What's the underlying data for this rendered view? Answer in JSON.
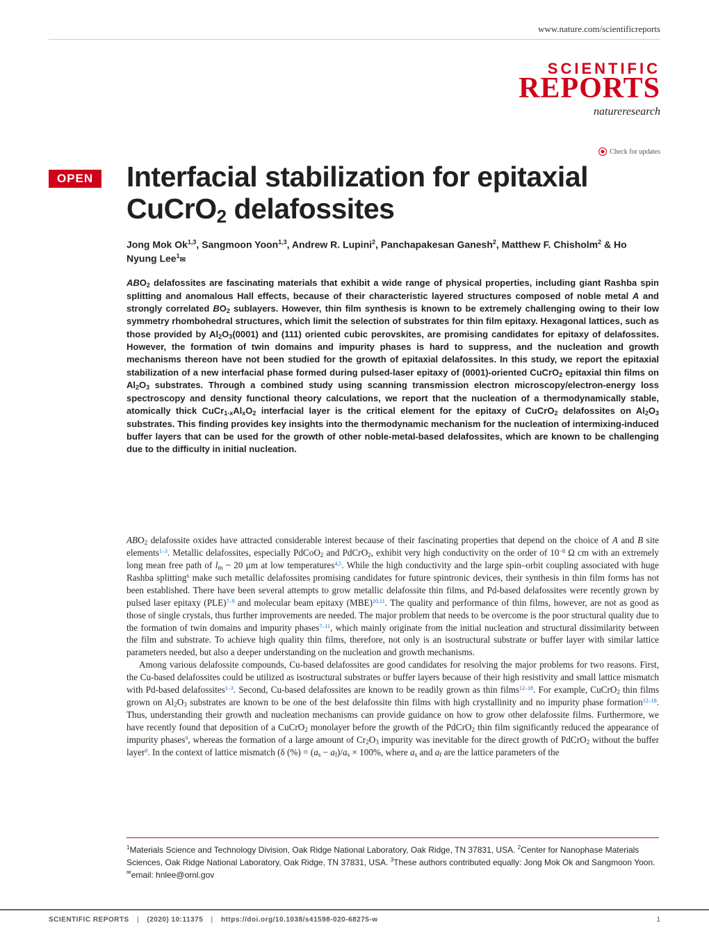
{
  "header": {
    "url": "www.nature.com/scientificreports"
  },
  "logo": {
    "scientific": "SCIENTIFIC",
    "reports": "REPORTS",
    "nature": "natureresearch"
  },
  "check_updates": {
    "label": "Check for updates"
  },
  "open_badge": "OPEN",
  "title": {
    "html": "Interfacial stabilization for epitaxial CuCrO<sub>2</sub> delafossites"
  },
  "authors": {
    "html": "Jong Mok Ok<sup>1,3</sup>, Sangmoon Yoon<sup>1,3</sup>, Andrew R. Lupini<sup>2</sup>, Panchapakesan Ganesh<sup>2</sup>, Matthew F. Chisholm<sup>2</sup> & Ho Nyung Lee<sup>1</sup><span class=\"envelope\">✉</span>"
  },
  "abstract": {
    "html": "<i>AB</i>O<sub>2</sub> delafossites are fascinating materials that exhibit a wide range of physical properties, including giant Rashba spin splitting and anomalous Hall effects, because of their characteristic layered structures composed of noble metal <i>A</i> and strongly correlated <i>B</i>O<sub>2</sub> sublayers. However, thin film synthesis is known to be extremely challenging owing to their low symmetry rhombohedral structures, which limit the selection of substrates for thin film epitaxy. Hexagonal lattices, such as those provided by Al<sub>2</sub>O<sub>3</sub>(0001) and (111) oriented cubic perovskites, are promising candidates for epitaxy of delafossites. However, the formation of twin domains and impurity phases is hard to suppress, and the nucleation and growth mechanisms thereon have not been studied for the growth of epitaxial delafossites. In this study, we report the epitaxial stabilization of a new interfacial phase formed during pulsed-laser epitaxy of (0001)-oriented CuCrO<sub>2</sub> epitaxial thin films on Al<sub>2</sub>O<sub>3</sub> substrates. Through a combined study using scanning transmission electron microscopy/electron-energy loss spectroscopy and density functional theory calculations, we report that the nucleation of a thermodynamically stable, atomically thick CuCr<sub>1-x</sub>Al<sub>x</sub>O<sub>2</sub> interfacial layer is the critical element for the epitaxy of CuCrO<sub>2</sub> delafossites on Al<sub>2</sub>O<sub>3</sub> substrates. This finding provides key insights into the thermodynamic mechanism for the nucleation of intermixing-induced buffer layers that can be used for the growth of other noble-metal-based delafossites, which are known to be challenging due to the difficulty in initial nucleation."
  },
  "body": {
    "p1": "<i>AB</i>O<sub>2</sub> delafossite oxides have attracted considerable interest because of their fascinating properties that depend on the choice of <i>A</i> and <i>B</i> site elements<sup class=\"ref\">1–3</sup>. Metallic delafossites, especially PdCoO<sub>2</sub> and PdCrO<sub>2</sub>, exhibit very high conductivity on the order of 10<sup>−8</sup> Ω cm with an extremely long mean free path of <i>l</i><sub>m</sub> ~ 20 μm at low temperatures<sup class=\"ref\">4,5</sup>. While the high conductivity and the large spin–orbit coupling associated with huge Rashba splitting<sup class=\"ref\">6</sup> make such metallic delafossites promising candidates for future spintronic devices, their synthesis in thin film forms has not been established. There have been several attempts to grow metallic delafossite thin films, and Pd-based delafossites were recently grown by pulsed laser epitaxy (PLE)<sup class=\"ref\">7–9</sup> and molecular beam epitaxy (MBE)<sup class=\"ref\">10,11</sup>. The quality and performance of thin films, however, are not as good as those of single crystals, thus further improvements are needed. The major problem that needs to be overcome is the poor structural quality due to the formation of twin domains and impurity phases<sup class=\"ref\">7–11</sup>, which mainly originate from the initial nucleation and structural dissimilarity between the film and substrate. To achieve high quality thin films, therefore, not only is an isostructural substrate or buffer layer with similar lattice parameters needed, but also a deeper understanding on the nucleation and growth mechanisms.",
    "p2": "Among various delafossite compounds, Cu-based delafossites are good candidates for resolving the major problems for two reasons. First, the Cu-based delafossites could be utilized as isostructural substrates or buffer layers because of their high resistivity and small lattice mismatch with Pd-based delafossites<sup class=\"ref\">1–3</sup>. Second, Cu-based delafossites are known to be readily grown as thin films<sup class=\"ref\">12–18</sup>. For example, CuCrO<sub>2</sub> thin films grown on Al<sub>2</sub>O<sub>3</sub> substrates are known to be one of the best delafossite thin films with high crystallinity and no impurity phase formation<sup class=\"ref\">12–18</sup>. Thus, understanding their growth and nucleation mechanisms can provide guidance on how to grow other delafossite films. Furthermore, we have recently found that deposition of a CuCrO<sub>2</sub> monolayer before the growth of the PdCrO<sub>2</sub> thin film significantly reduced the appearance of impurity phases<sup class=\"ref\">9</sup>, whereas the formation of a large amount of Cr<sub>2</sub>O<sub>3</sub> impurity was inevitable for the direct growth of PdCrO<sub>2</sub> without the buffer layer<sup class=\"ref\">9</sup>. In the context of lattice mismatch (δ (%) = (<i>a</i><sub>s</sub> − <i>a</i><sub>f</sub>)/<i>a</i><sub>s</sub> × 100%, where <i>a</i><sub>s</sub> and <i>a</i><sub>f</sub> are the lattice parameters of the"
  },
  "affiliations": {
    "html": "<sup>1</sup>Materials Science and Technology Division, Oak Ridge National Laboratory, Oak Ridge, TN 37831, USA. <sup>2</sup>Center for Nanophase Materials Sciences, Oak Ridge National Laboratory, Oak Ridge, TN 37831, USA. <sup>3</sup>These authors contributed equally: Jong Mok Ok and Sangmoon Yoon. <sup>✉</sup>email: hnlee@ornl.gov"
  },
  "footer": {
    "journal": "SCIENTIFIC REPORTS",
    "citation": "(2020) 10:11375",
    "doi": "https://doi.org/10.1038/s41598-020-68275-w",
    "page": "1"
  },
  "colors": {
    "brand_red": "#d0021b",
    "text": "#231f20",
    "ref_link": "#0066cc",
    "footer_rule": "#666666"
  },
  "typography": {
    "title_fontsize": 41,
    "author_fontsize": 14,
    "abstract_fontsize": 13,
    "body_fontsize": 13.2,
    "affil_fontsize": 12,
    "footer_fontsize": 10
  }
}
